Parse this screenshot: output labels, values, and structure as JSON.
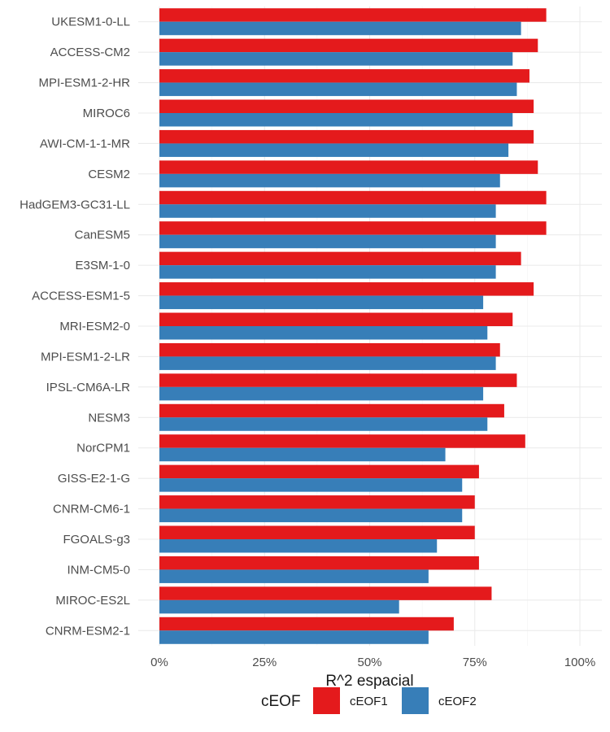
{
  "chart_data": {
    "type": "bar",
    "orientation": "horizontal",
    "categories": [
      "UKESM1-0-LL",
      "ACCESS-CM2",
      "MPI-ESM1-2-HR",
      "MIROC6",
      "AWI-CM-1-1-MR",
      "CESM2",
      "HadGEM3-GC31-LL",
      "CanESM5",
      "E3SM-1-0",
      "ACCESS-ESM1-5",
      "MRI-ESM2-0",
      "MPI-ESM1-2-LR",
      "IPSL-CM6A-LR",
      "NESM3",
      "NorCPM1",
      "GISS-E2-1-G",
      "CNRM-CM6-1",
      "FGOALS-g3",
      "INM-CM5-0",
      "MIROC-ES2L",
      "CNRM-ESM2-1"
    ],
    "series": [
      {
        "name": "cEOF1",
        "color": "#e41a1c",
        "values": [
          0.92,
          0.9,
          0.88,
          0.89,
          0.89,
          0.9,
          0.92,
          0.92,
          0.86,
          0.89,
          0.84,
          0.81,
          0.85,
          0.82,
          0.87,
          0.76,
          0.75,
          0.75,
          0.76,
          0.79,
          0.7
        ]
      },
      {
        "name": "cEOF2",
        "color": "#377eb8",
        "values": [
          0.86,
          0.84,
          0.85,
          0.84,
          0.83,
          0.81,
          0.8,
          0.8,
          0.8,
          0.77,
          0.78,
          0.8,
          0.77,
          0.78,
          0.68,
          0.72,
          0.72,
          0.66,
          0.64,
          0.57,
          0.64
        ]
      }
    ],
    "xlabel": "R^2 espacial",
    "ylabel": "",
    "xlim": [
      0,
      1.05
    ],
    "xticks": [
      0,
      0.25,
      0.5,
      0.75,
      1.0
    ],
    "xtick_labels": [
      "0%",
      "25%",
      "50%",
      "75%",
      "100%"
    ],
    "legend": {
      "title": "cEOF",
      "position": "bottom"
    },
    "grid": true,
    "background": "#ffffff",
    "grid_color": "#ebebeb"
  }
}
